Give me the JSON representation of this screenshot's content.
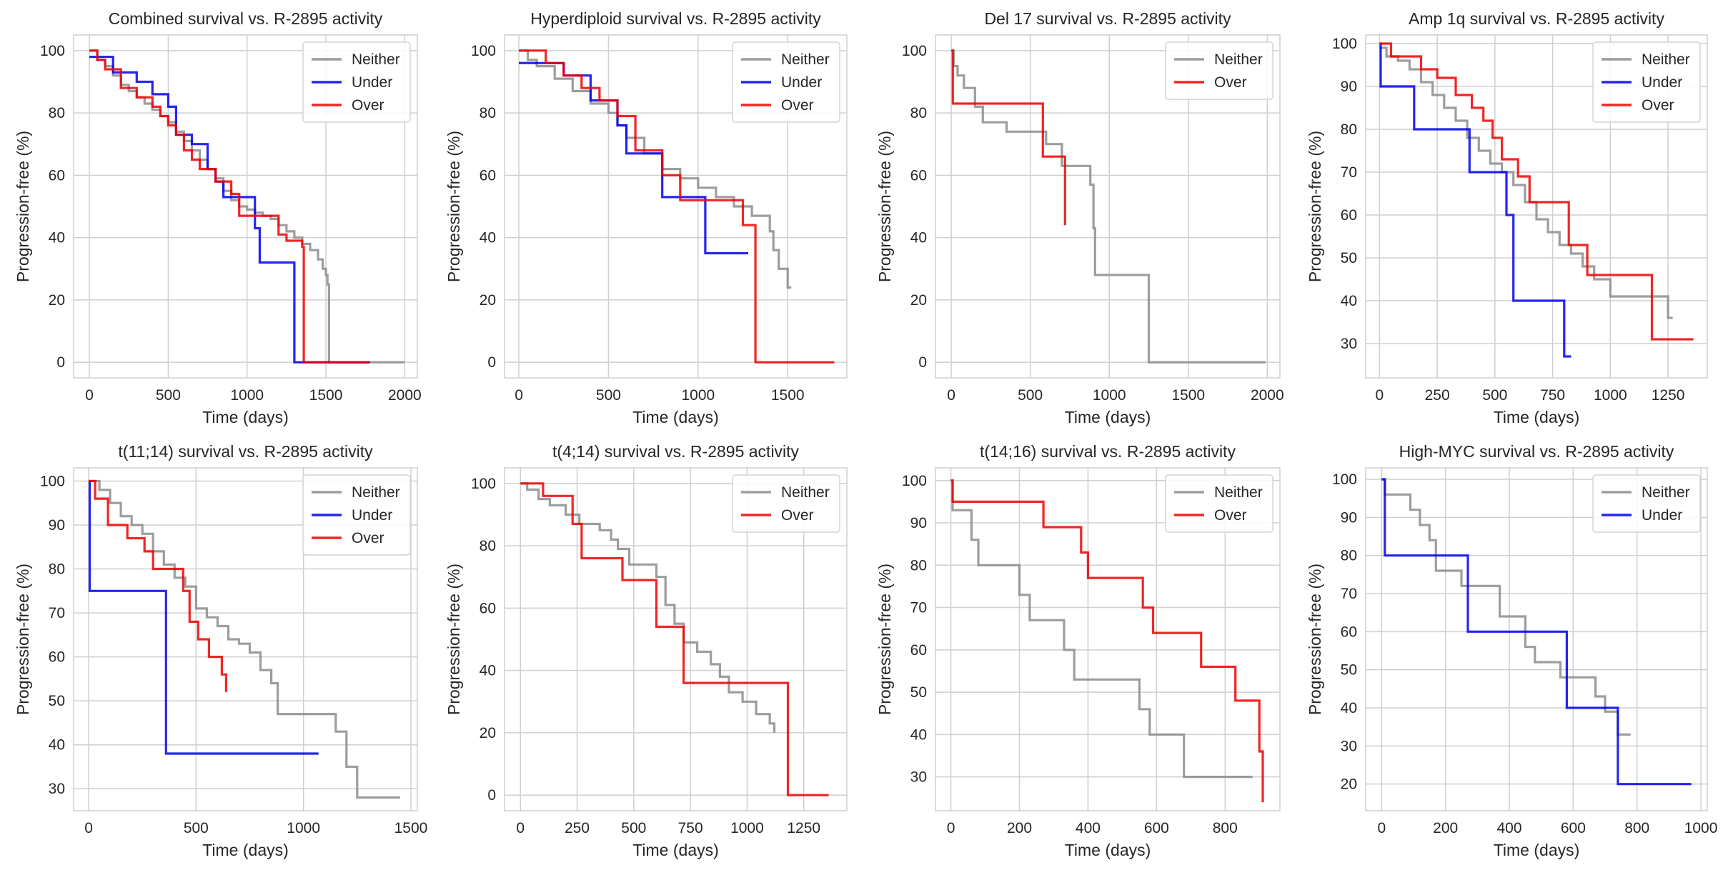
{
  "colors": {
    "Neither": "#8c8c8c",
    "Under": "#0000ee",
    "Over": "#ee0000"
  },
  "chart_data": [
    {
      "type": "line",
      "title": "Combined survival vs. R-2895 activity",
      "xlabel": "Time (days)",
      "ylabel": "Progression-free (%)",
      "xlim": [
        -100,
        2080
      ],
      "ylim": [
        -5,
        105
      ],
      "xticks": [
        0,
        500,
        1000,
        1500,
        2000
      ],
      "yticks": [
        0,
        20,
        40,
        60,
        80,
        100
      ],
      "legend_position": "top-right",
      "series": [
        {
          "name": "Neither",
          "x": [
            0,
            50,
            100,
            150,
            200,
            250,
            300,
            350,
            400,
            450,
            500,
            550,
            600,
            650,
            700,
            750,
            800,
            850,
            900,
            950,
            1000,
            1050,
            1100,
            1150,
            1200,
            1250,
            1300,
            1350,
            1400,
            1450,
            1480,
            1500,
            1510,
            1520,
            1600,
            2000
          ],
          "y": [
            100,
            97,
            95,
            92,
            89,
            87,
            85,
            83,
            81,
            79,
            77,
            74,
            71,
            68,
            65,
            62,
            59,
            55,
            52,
            50,
            49,
            48,
            47,
            46,
            44,
            42,
            40,
            38,
            36,
            33,
            30,
            28,
            25,
            0,
            0,
            0
          ]
        },
        {
          "name": "Under",
          "x": [
            0,
            150,
            300,
            400,
            500,
            550,
            650,
            750,
            800,
            850,
            1050,
            1080,
            1280,
            1300,
            1780
          ],
          "y": [
            98,
            93,
            90,
            86,
            82,
            73,
            70,
            62,
            58,
            53,
            43,
            32,
            32,
            0,
            0
          ]
        },
        {
          "name": "Over",
          "x": [
            0,
            50,
            100,
            200,
            300,
            400,
            450,
            500,
            550,
            600,
            650,
            700,
            800,
            900,
            950,
            1000,
            1100,
            1200,
            1250,
            1350,
            1360,
            1780
          ],
          "y": [
            100,
            97,
            94,
            88,
            85,
            82,
            79,
            76,
            73,
            68,
            65,
            62,
            58,
            54,
            47,
            47,
            47,
            41,
            39,
            37,
            0,
            0
          ]
        }
      ]
    },
    {
      "type": "line",
      "title": "Hyperdiploid survival vs. R-2895 activity",
      "xlabel": "Time (days)",
      "ylabel": "Progression-free (%)",
      "xlim": [
        -80,
        1830
      ],
      "ylim": [
        -5,
        105
      ],
      "xticks": [
        0,
        500,
        1000,
        1500
      ],
      "yticks": [
        0,
        20,
        40,
        60,
        80,
        100
      ],
      "legend_position": "top-right",
      "series": [
        {
          "name": "Neither",
          "x": [
            0,
            50,
            100,
            200,
            300,
            400,
            500,
            550,
            600,
            700,
            800,
            900,
            1000,
            1100,
            1200,
            1300,
            1400,
            1420,
            1450,
            1500,
            1520
          ],
          "y": [
            100,
            97,
            95,
            91,
            87,
            83,
            80,
            76,
            72,
            67,
            62,
            59,
            56,
            53,
            50,
            47,
            42,
            36,
            30,
            24,
            24
          ]
        },
        {
          "name": "Under",
          "x": [
            0,
            100,
            250,
            400,
            550,
            600,
            800,
            1040,
            1280
          ],
          "y": [
            96,
            96,
            92,
            84,
            76,
            67,
            53,
            35,
            35
          ]
        },
        {
          "name": "Over",
          "x": [
            0,
            150,
            250,
            350,
            450,
            550,
            650,
            800,
            900,
            1250,
            1320,
            1760
          ],
          "y": [
            100,
            96,
            92,
            88,
            84,
            79,
            68,
            60,
            52,
            44,
            0,
            0
          ]
        }
      ]
    },
    {
      "type": "line",
      "title": "Del 17 survival vs. R-2895 activity",
      "xlabel": "Time (days)",
      "ylabel": "Progression-free (%)",
      "xlim": [
        -100,
        2080
      ],
      "ylim": [
        -5,
        105
      ],
      "xticks": [
        0,
        500,
        1000,
        1500,
        2000
      ],
      "yticks": [
        0,
        20,
        40,
        60,
        80,
        100
      ],
      "legend_position": "top-right",
      "series": [
        {
          "name": "Neither",
          "x": [
            0,
            15,
            40,
            80,
            150,
            200,
            350,
            600,
            700,
            880,
            900,
            910,
            1250,
            1990
          ],
          "y": [
            100,
            95,
            92,
            88,
            82,
            77,
            74,
            70,
            63,
            57,
            43,
            28,
            0,
            0
          ]
        },
        {
          "name": "Over",
          "x": [
            0,
            10,
            360,
            580,
            720
          ],
          "y": [
            100,
            83,
            83,
            66,
            44
          ]
        }
      ]
    },
    {
      "type": "line",
      "title": "Amp 1q survival vs. R-2895 activity",
      "xlabel": "Time (days)",
      "ylabel": "Progression-free (%)",
      "xlim": [
        -60,
        1420
      ],
      "ylim": [
        22,
        102
      ],
      "xticks": [
        0,
        250,
        500,
        750,
        1000,
        1250
      ],
      "yticks": [
        30,
        40,
        50,
        60,
        70,
        80,
        90,
        100
      ],
      "legend_position": "top-right",
      "series": [
        {
          "name": "Neither",
          "x": [
            0,
            30,
            80,
            130,
            180,
            230,
            280,
            330,
            380,
            430,
            480,
            530,
            580,
            630,
            680,
            730,
            780,
            830,
            880,
            930,
            1000,
            1100,
            1200,
            1250,
            1270
          ],
          "y": [
            99,
            97,
            96,
            94,
            91,
            88,
            85,
            82,
            78,
            75,
            72,
            70,
            67,
            63,
            59,
            56,
            53,
            51,
            48,
            45,
            41,
            41,
            41,
            36,
            36
          ]
        },
        {
          "name": "Under",
          "x": [
            0,
            5,
            150,
            390,
            550,
            580,
            800,
            830
          ],
          "y": [
            100,
            90,
            80,
            70,
            60,
            40,
            27,
            27
          ]
        },
        {
          "name": "Over",
          "x": [
            0,
            50,
            180,
            250,
            330,
            400,
            450,
            490,
            530,
            600,
            650,
            820,
            900,
            1180,
            1360
          ],
          "y": [
            100,
            97,
            94,
            92,
            88,
            85,
            82,
            78,
            73,
            69,
            63,
            53,
            46,
            31,
            31
          ]
        }
      ]
    },
    {
      "type": "line",
      "title": "t(11;14) survival vs. R-2895 activity",
      "xlabel": "Time (days)",
      "ylabel": "Progression-free (%)",
      "xlim": [
        -70,
        1530
      ],
      "ylim": [
        25,
        103
      ],
      "xticks": [
        0,
        500,
        1000,
        1500
      ],
      "yticks": [
        30,
        40,
        50,
        60,
        70,
        80,
        90,
        100
      ],
      "legend_position": "top-right",
      "series": [
        {
          "name": "Neither",
          "x": [
            0,
            50,
            100,
            150,
            200,
            250,
            300,
            350,
            400,
            450,
            500,
            550,
            600,
            650,
            700,
            750,
            800,
            850,
            880,
            1150,
            1200,
            1250,
            1450
          ],
          "y": [
            100,
            98,
            95,
            92,
            90,
            88,
            84,
            81,
            78,
            76,
            71,
            69,
            67,
            64,
            63,
            61,
            57,
            54,
            47,
            43,
            35,
            28,
            28
          ]
        },
        {
          "name": "Under",
          "x": [
            0,
            5,
            350,
            360,
            1070
          ],
          "y": [
            100,
            75,
            75,
            38,
            38
          ]
        },
        {
          "name": "Over",
          "x": [
            0,
            30,
            90,
            180,
            260,
            300,
            440,
            470,
            510,
            560,
            620,
            640
          ],
          "y": [
            100,
            96,
            90,
            87,
            84,
            80,
            75,
            68,
            64,
            60,
            56,
            52
          ]
        }
      ]
    },
    {
      "type": "line",
      "title": "t(4;14) survival vs. R-2895 activity",
      "xlabel": "Time (days)",
      "ylabel": "Progression-free (%)",
      "xlim": [
        -70,
        1440
      ],
      "ylim": [
        -5,
        105
      ],
      "xticks": [
        0,
        250,
        500,
        750,
        1000,
        1250
      ],
      "yticks": [
        0,
        20,
        40,
        60,
        80,
        100
      ],
      "legend_position": "top-right",
      "series": [
        {
          "name": "Neither",
          "x": [
            0,
            30,
            80,
            130,
            200,
            260,
            350,
            400,
            430,
            480,
            600,
            640,
            680,
            720,
            780,
            840,
            880,
            920,
            980,
            1040,
            1100,
            1120
          ],
          "y": [
            100,
            98,
            95,
            93,
            90,
            87,
            85,
            82,
            79,
            74,
            70,
            61,
            55,
            49,
            46,
            42,
            38,
            33,
            30,
            26,
            23,
            20
          ]
        },
        {
          "name": "Over",
          "x": [
            0,
            100,
            230,
            270,
            450,
            600,
            720,
            1180,
            1360
          ],
          "y": [
            100,
            96,
            87,
            76,
            69,
            54,
            36,
            0,
            0
          ]
        }
      ]
    },
    {
      "type": "line",
      "title": "t(14;16) survival vs. R-2895 activity",
      "xlabel": "Time (days)",
      "ylabel": "Progression-free (%)",
      "xlim": [
        -45,
        960
      ],
      "ylim": [
        22,
        103
      ],
      "xticks": [
        0,
        200,
        400,
        600,
        800
      ],
      "yticks": [
        30,
        40,
        50,
        60,
        70,
        80,
        90,
        100
      ],
      "legend_position": "top-right",
      "series": [
        {
          "name": "Neither",
          "x": [
            0,
            5,
            60,
            80,
            200,
            230,
            330,
            360,
            550,
            580,
            680,
            880
          ],
          "y": [
            100,
            93,
            86,
            80,
            73,
            67,
            60,
            53,
            46,
            40,
            30,
            30
          ]
        },
        {
          "name": "Over",
          "x": [
            0,
            5,
            270,
            380,
            400,
            560,
            590,
            730,
            830,
            900,
            910
          ],
          "y": [
            100,
            95,
            89,
            83,
            77,
            70,
            64,
            56,
            48,
            36,
            24
          ]
        }
      ]
    },
    {
      "type": "line",
      "title": "High-MYC survival vs. R-2895 activity",
      "xlabel": "Time (days)",
      "ylabel": "Progression-free (%)",
      "xlim": [
        -50,
        1020
      ],
      "ylim": [
        13,
        103
      ],
      "xticks": [
        0,
        200,
        400,
        600,
        800,
        1000
      ],
      "yticks": [
        20,
        30,
        40,
        50,
        60,
        70,
        80,
        90,
        100
      ],
      "legend_position": "top-right",
      "series": [
        {
          "name": "Neither",
          "x": [
            0,
            10,
            90,
            120,
            150,
            170,
            250,
            370,
            450,
            480,
            560,
            670,
            700,
            740,
            780
          ],
          "y": [
            100,
            96,
            92,
            88,
            84,
            76,
            72,
            64,
            56,
            52,
            48,
            43,
            39,
            33,
            33
          ]
        },
        {
          "name": "Under",
          "x": [
            0,
            10,
            260,
            270,
            560,
            580,
            730,
            740,
            970
          ],
          "y": [
            100,
            80,
            80,
            60,
            60,
            40,
            40,
            20,
            20
          ]
        }
      ]
    }
  ]
}
